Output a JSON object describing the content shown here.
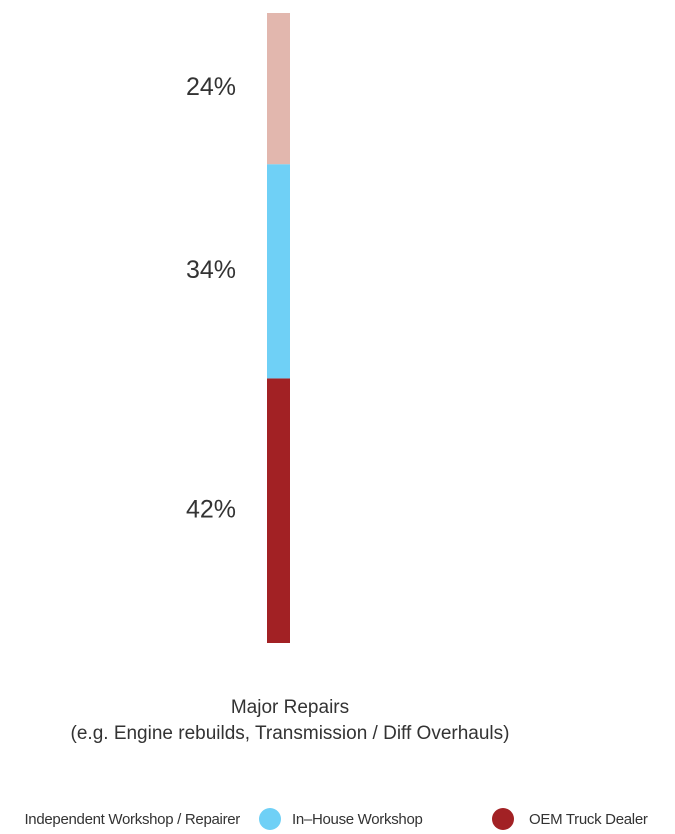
{
  "chart_data": {
    "type": "bar",
    "stacked": true,
    "categories": [
      "Major Repairs\n(e.g. Engine rebuilds, Transmission / Diff Overhauls)"
    ],
    "series": [
      {
        "name": "OEM Truck Dealer",
        "values": [
          42
        ],
        "label": "42%",
        "color": "#A22124"
      },
      {
        "name": "In–House Workshop",
        "values": [
          34
        ],
        "label": "34%",
        "color": "#6FD0F6"
      },
      {
        "name": "Independent Workshop / Repairer",
        "values": [
          24
        ],
        "label": "24%",
        "color": "#E2B7AE"
      }
    ],
    "legend": {
      "position": "bottom",
      "entries": [
        {
          "label": "Independent Workshop / Repairer",
          "color": "#E2B7AE"
        },
        {
          "label": "In–House Workshop",
          "color": "#6FD0F6"
        },
        {
          "label": "OEM Truck Dealer",
          "color": "#A22124"
        }
      ]
    },
    "ylim": [
      0,
      100
    ],
    "grid": false
  }
}
